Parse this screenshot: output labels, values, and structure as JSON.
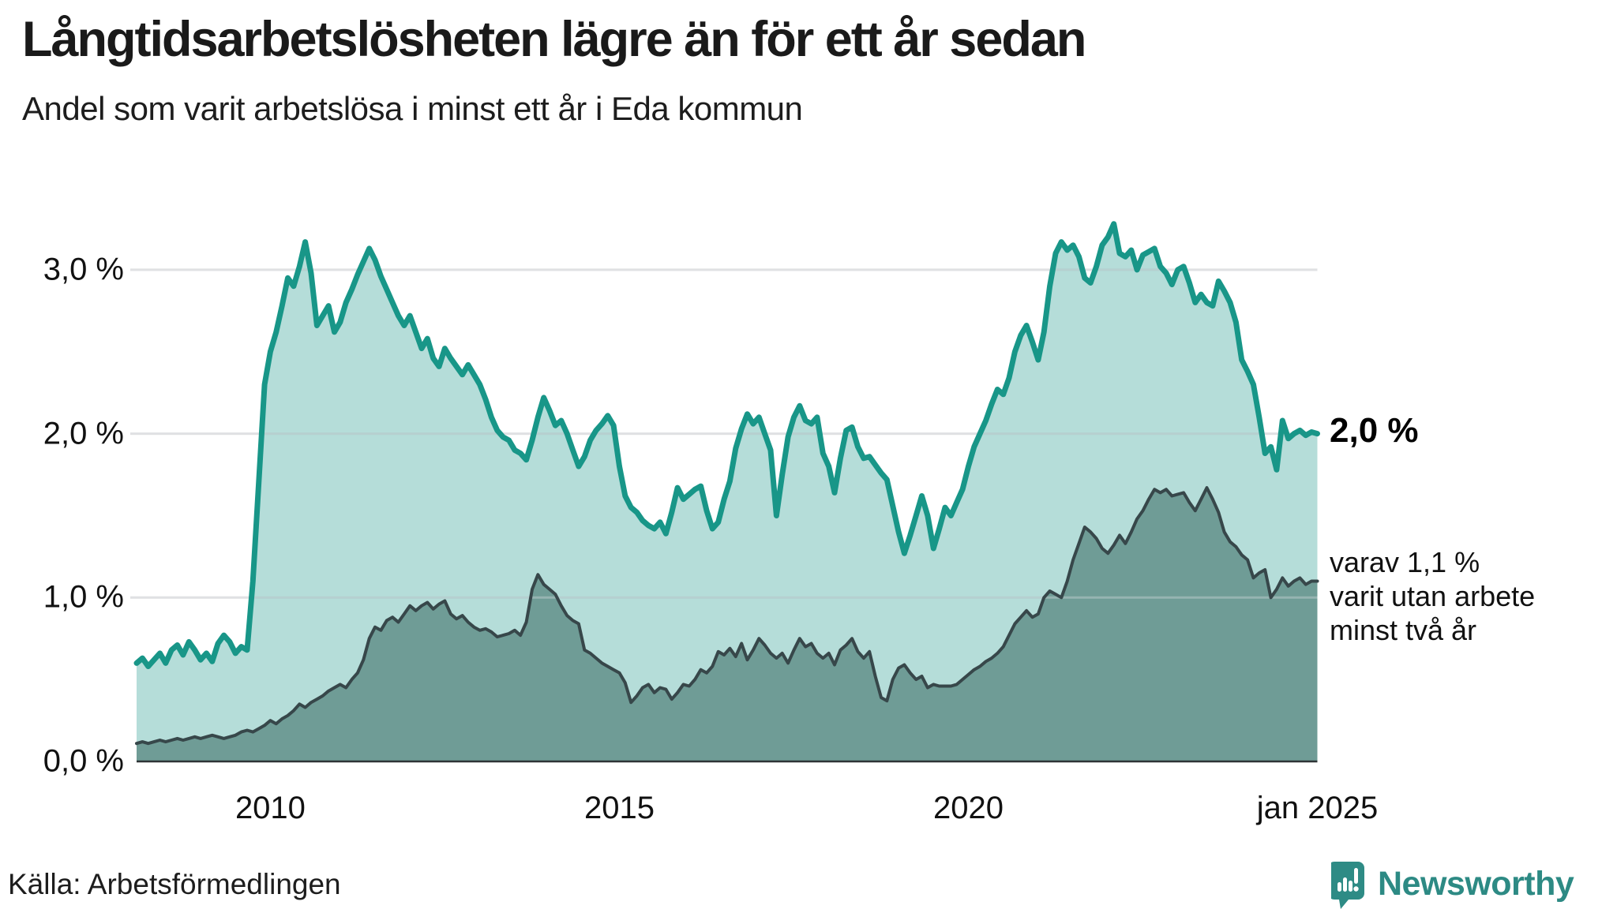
{
  "header": {
    "title": "Långtidsarbetslösheten lägre än för ett år sedan",
    "subtitle": "Andel som varit arbetslösa i minst ett år i Eda kommun"
  },
  "annotations": {
    "latest_total": "2,0 %",
    "secondary_line1": "varav 1,1 %",
    "secondary_line2": "varit utan arbete",
    "secondary_line3": "minst två år"
  },
  "footer": {
    "source": "Källa: Arbetsförmedlingen",
    "brand": "Newsworthy"
  },
  "colors": {
    "line_1yr": "#189688",
    "fill_1yr": "rgba(24,150,136,0.32)",
    "line_2yr": "#37474a",
    "fill_2yr": "#6f9c96",
    "gridline": "#e0e1e3",
    "baseline": "#2e3436",
    "brand_teal": "#2d8a84",
    "text": "#1a1a1a"
  },
  "chart_data": {
    "type": "area",
    "title": "Långtidsarbetslösheten lägre än för ett år sedan",
    "subtitle": "Andel som varit arbetslösa i minst ett år i Eda kommun",
    "unit": "%",
    "x_start_year_decimal": 2008.0833,
    "x_step_months": 1,
    "xlim": [
      2008.0833,
      2025.0
    ],
    "ylim": [
      0,
      3.55
    ],
    "grid": "horizontal",
    "x_ticks": [
      {
        "t": 2010.0,
        "label": "2010"
      },
      {
        "t": 2015.0,
        "label": "2015"
      },
      {
        "t": 2020.0,
        "label": "2020"
      },
      {
        "t": 2025.0,
        "label": "jan 2025"
      }
    ],
    "y_ticks": [
      {
        "v": 0,
        "label": "0,0 %"
      },
      {
        "v": 1,
        "label": "1,0 %"
      },
      {
        "v": 2,
        "label": "2,0 %"
      },
      {
        "v": 3,
        "label": "3,0 %"
      }
    ],
    "series": [
      {
        "name": "Andel som varit arbetslösa i minst ett år",
        "latest_label": "2,0 %",
        "latest_value": 2.0,
        "values": [
          0.6,
          0.63,
          0.58,
          0.62,
          0.66,
          0.6,
          0.68,
          0.71,
          0.65,
          0.73,
          0.68,
          0.62,
          0.66,
          0.61,
          0.72,
          0.77,
          0.73,
          0.66,
          0.7,
          0.68,
          1.1,
          1.7,
          2.3,
          2.5,
          2.62,
          2.78,
          2.95,
          2.9,
          3.02,
          3.17,
          2.98,
          2.66,
          2.72,
          2.78,
          2.62,
          2.68,
          2.8,
          2.88,
          2.97,
          3.05,
          3.13,
          3.06,
          2.96,
          2.88,
          2.8,
          2.72,
          2.66,
          2.72,
          2.62,
          2.52,
          2.58,
          2.46,
          2.41,
          2.52,
          2.46,
          2.41,
          2.36,
          2.42,
          2.36,
          2.3,
          2.21,
          2.1,
          2.02,
          1.98,
          1.96,
          1.9,
          1.88,
          1.84,
          1.96,
          2.1,
          2.22,
          2.14,
          2.05,
          2.08,
          2.0,
          1.9,
          1.8,
          1.86,
          1.96,
          2.02,
          2.06,
          2.11,
          2.05,
          1.8,
          1.62,
          1.55,
          1.52,
          1.47,
          1.44,
          1.42,
          1.46,
          1.39,
          1.52,
          1.67,
          1.6,
          1.63,
          1.66,
          1.68,
          1.53,
          1.42,
          1.46,
          1.6,
          1.71,
          1.91,
          2.03,
          2.12,
          2.06,
          2.1,
          2.0,
          1.9,
          1.5,
          1.75,
          1.98,
          2.1,
          2.17,
          2.08,
          2.06,
          2.1,
          1.88,
          1.8,
          1.64,
          1.85,
          2.02,
          2.04,
          1.92,
          1.85,
          1.86,
          1.81,
          1.76,
          1.72,
          1.56,
          1.4,
          1.27,
          1.38,
          1.5,
          1.62,
          1.5,
          1.3,
          1.42,
          1.55,
          1.5,
          1.58,
          1.66,
          1.8,
          1.92,
          2.0,
          2.08,
          2.18,
          2.27,
          2.24,
          2.34,
          2.5,
          2.6,
          2.66,
          2.56,
          2.45,
          2.62,
          2.9,
          3.1,
          3.17,
          3.12,
          3.15,
          3.08,
          2.95,
          2.92,
          3.02,
          3.15,
          3.2,
          3.28,
          3.1,
          3.08,
          3.12,
          3.0,
          3.09,
          3.11,
          3.13,
          3.02,
          2.98,
          2.91,
          3.0,
          3.02,
          2.92,
          2.8,
          2.85,
          2.8,
          2.78,
          2.93,
          2.87,
          2.8,
          2.68,
          2.45,
          2.38,
          2.3,
          2.1,
          1.88,
          1.92,
          1.78,
          2.08,
          1.97,
          2.0,
          2.02,
          1.99,
          2.01,
          2.0
        ]
      },
      {
        "name": "varav varit utan arbete minst två år",
        "latest_label": "varav 1,1 % varit utan arbete minst två år",
        "latest_value": 1.1,
        "values": [
          0.11,
          0.12,
          0.11,
          0.12,
          0.13,
          0.12,
          0.13,
          0.14,
          0.13,
          0.14,
          0.15,
          0.14,
          0.15,
          0.16,
          0.15,
          0.14,
          0.15,
          0.16,
          0.18,
          0.19,
          0.18,
          0.2,
          0.22,
          0.25,
          0.23,
          0.26,
          0.28,
          0.31,
          0.35,
          0.33,
          0.36,
          0.38,
          0.4,
          0.43,
          0.45,
          0.47,
          0.45,
          0.5,
          0.54,
          0.62,
          0.75,
          0.82,
          0.8,
          0.86,
          0.88,
          0.85,
          0.9,
          0.95,
          0.92,
          0.95,
          0.97,
          0.93,
          0.96,
          0.98,
          0.9,
          0.87,
          0.89,
          0.85,
          0.82,
          0.8,
          0.81,
          0.79,
          0.76,
          0.77,
          0.78,
          0.8,
          0.77,
          0.85,
          1.05,
          1.14,
          1.08,
          1.05,
          1.02,
          0.95,
          0.89,
          0.86,
          0.84,
          0.68,
          0.66,
          0.63,
          0.6,
          0.58,
          0.56,
          0.54,
          0.48,
          0.36,
          0.4,
          0.45,
          0.47,
          0.42,
          0.45,
          0.44,
          0.38,
          0.42,
          0.47,
          0.46,
          0.5,
          0.56,
          0.54,
          0.58,
          0.67,
          0.65,
          0.69,
          0.64,
          0.72,
          0.62,
          0.68,
          0.75,
          0.71,
          0.66,
          0.63,
          0.66,
          0.6,
          0.68,
          0.75,
          0.7,
          0.72,
          0.66,
          0.63,
          0.66,
          0.59,
          0.68,
          0.71,
          0.75,
          0.67,
          0.63,
          0.67,
          0.52,
          0.39,
          0.37,
          0.5,
          0.57,
          0.59,
          0.54,
          0.5,
          0.52,
          0.45,
          0.47,
          0.46,
          0.46,
          0.46,
          0.47,
          0.5,
          0.53,
          0.56,
          0.58,
          0.61,
          0.63,
          0.66,
          0.7,
          0.77,
          0.84,
          0.88,
          0.92,
          0.88,
          0.9,
          1.0,
          1.04,
          1.02,
          1.0,
          1.1,
          1.23,
          1.33,
          1.43,
          1.4,
          1.36,
          1.3,
          1.27,
          1.32,
          1.38,
          1.33,
          1.4,
          1.48,
          1.53,
          1.6,
          1.66,
          1.64,
          1.66,
          1.62,
          1.63,
          1.64,
          1.58,
          1.53,
          1.6,
          1.67,
          1.6,
          1.52,
          1.4,
          1.34,
          1.31,
          1.26,
          1.23,
          1.12,
          1.15,
          1.17,
          1.0,
          1.05,
          1.12,
          1.07,
          1.1,
          1.12,
          1.08,
          1.1,
          1.1
        ]
      }
    ]
  }
}
